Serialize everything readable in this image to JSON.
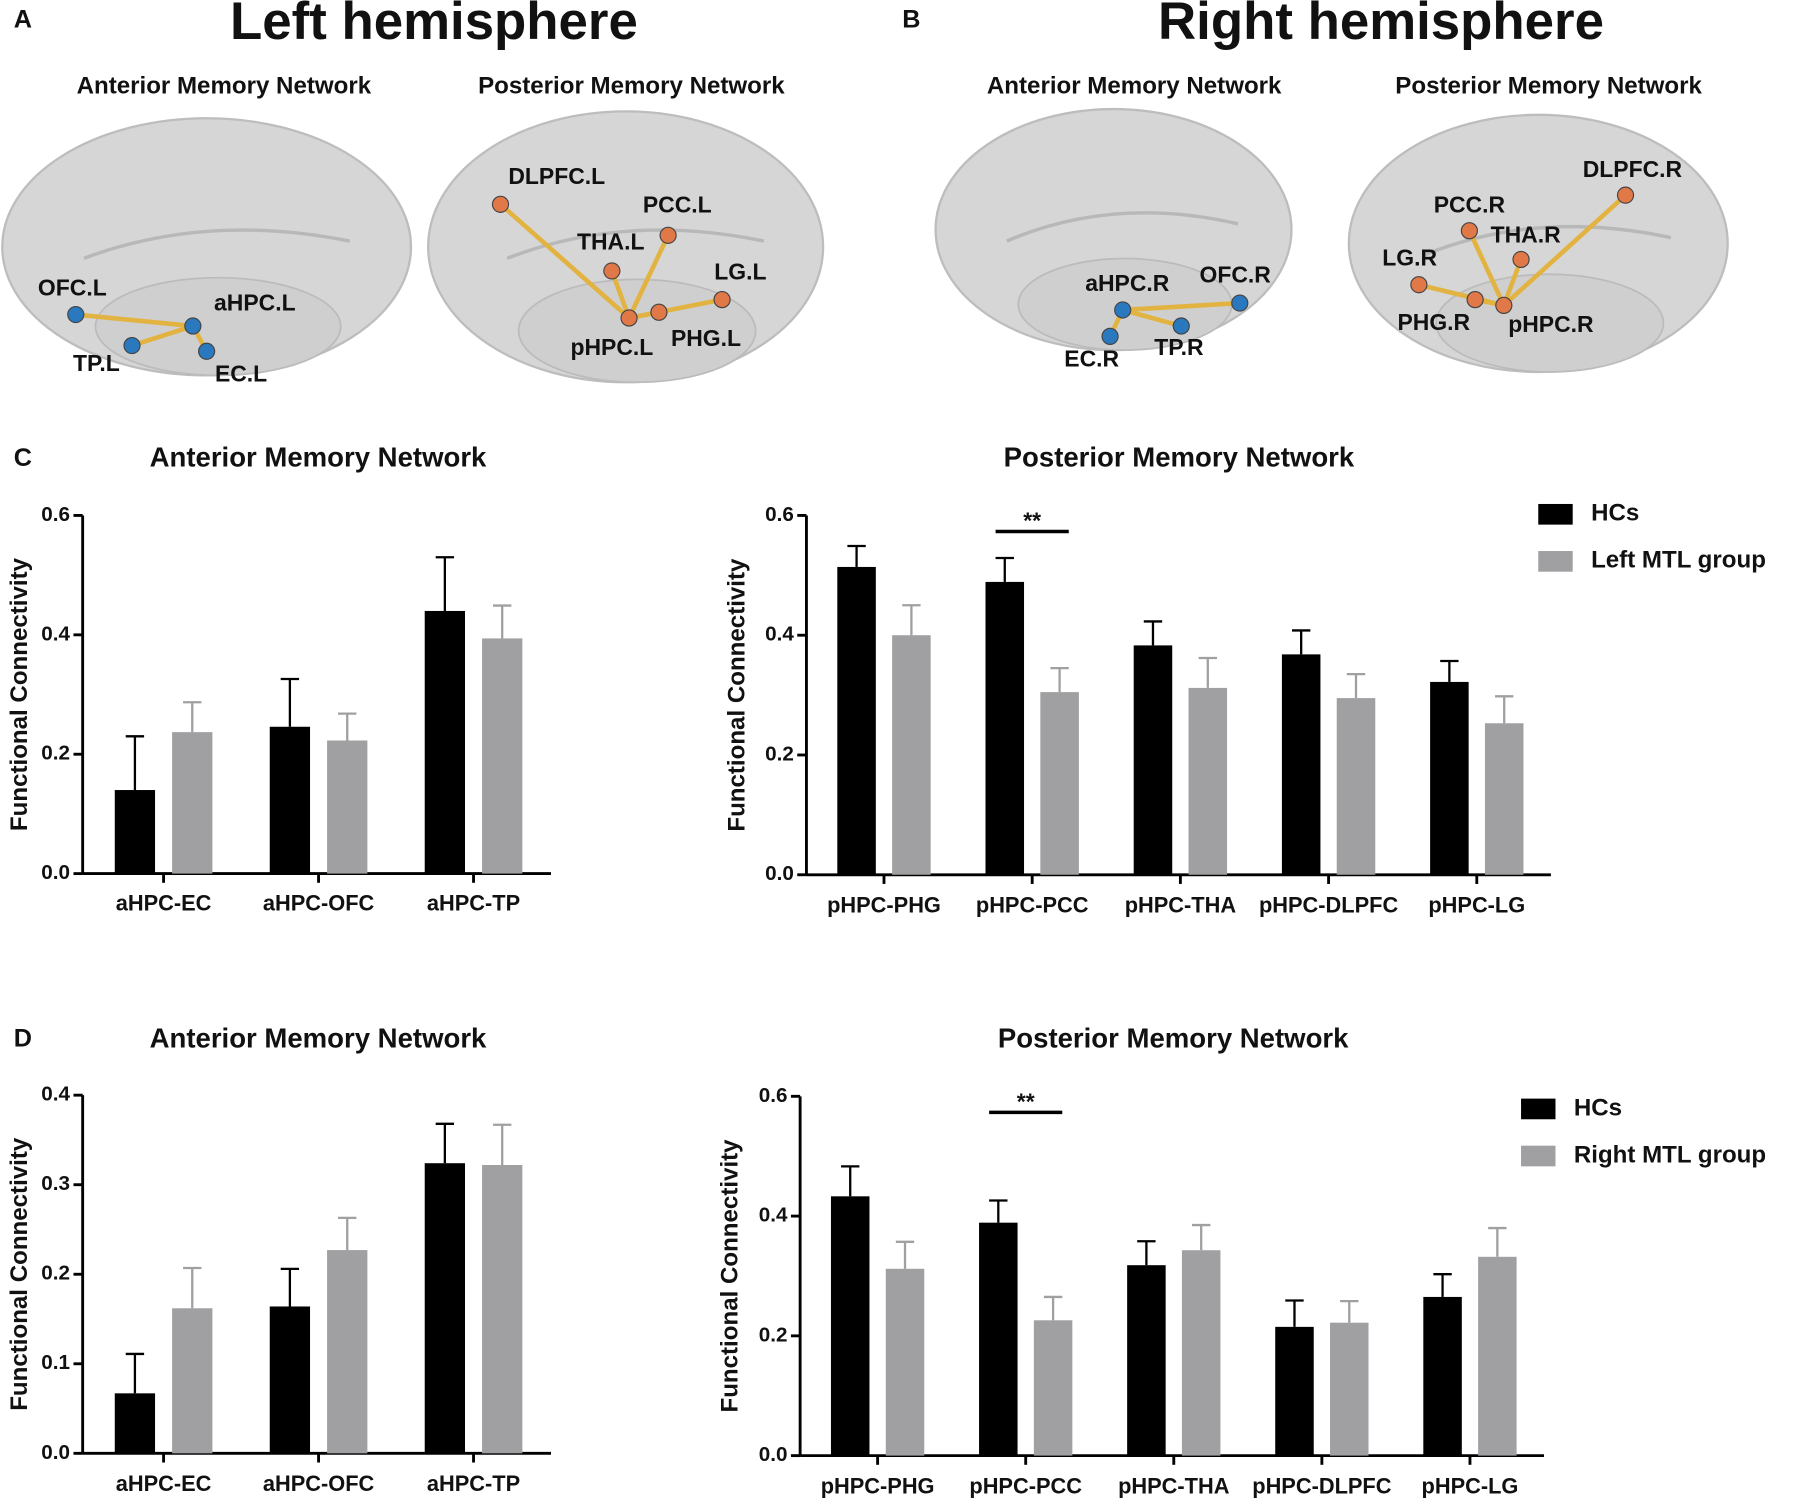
{
  "panel_labels": [
    "A",
    "B",
    "C",
    "D"
  ],
  "brain_maps": [
    {
      "title": "Left hemisphere",
      "networks": [
        {
          "title": "Anterior Memory Network",
          "node_color": "#2a78bd",
          "nodes": [
            "aHPC.L",
            "OFC.L",
            "TP.L",
            "EC.L"
          ]
        },
        {
          "title": "Posterior Memory Network",
          "node_color": "#e07848",
          "nodes": [
            "pHPC.L",
            "DLPFC.L",
            "PCC.L",
            "THA.L",
            "LG.L",
            "PHG.L"
          ]
        }
      ]
    },
    {
      "title": "Right hemisphere",
      "networks": [
        {
          "title": "Anterior Memory Network",
          "node_color": "#2a78bd",
          "nodes": [
            "aHPC.R",
            "OFC.R",
            "EC.R",
            "TP.R"
          ]
        },
        {
          "title": "Posterior Memory Network",
          "node_color": "#e07848",
          "nodes": [
            "pHPC.R",
            "DLPFC.R",
            "PCC.R",
            "THA.R",
            "LG.R",
            "PHG.R"
          ]
        }
      ]
    }
  ],
  "chart_data": [
    {
      "type": "bar",
      "title": "Anterior Memory Network",
      "y_label": "Functional Connectivity",
      "categories": [
        "aHPC-EC",
        "aHPC-OFC",
        "aHPC-TP"
      ],
      "series": [
        {
          "color": "#000000",
          "values": [
            0.14,
            0.246,
            0.44
          ],
          "errors": [
            0.09,
            0.08,
            0.09
          ]
        },
        {
          "color": "#a0a0a2",
          "values": [
            0.237,
            0.223,
            0.394
          ],
          "errors": [
            0.05,
            0.045,
            0.055
          ]
        }
      ],
      "ylim": [
        0,
        0.6
      ],
      "yticks": [
        {
          "value": 0,
          "label": "0.0"
        },
        {
          "value": 0.2,
          "label": "0.2"
        },
        {
          "value": 0.4,
          "label": "0.4"
        },
        {
          "value": 0.6,
          "label": "0.6"
        }
      ]
    },
    {
      "type": "bar",
      "title": "Posterior Memory Network",
      "y_label": "Functional Connectivity",
      "categories": [
        "pHPC-PHG",
        "pHPC-PCC",
        "pHPC-THA",
        "pHPC-DLPFC",
        "pHPC-LG"
      ],
      "series": [
        {
          "name": "HCs",
          "color": "#000000",
          "values": [
            0.514,
            0.489,
            0.383,
            0.368,
            0.322
          ],
          "errors": [
            0.035,
            0.04,
            0.04,
            0.04,
            0.035
          ]
        },
        {
          "name": "Left MTL group",
          "color": "#a0a0a2",
          "values": [
            0.4,
            0.305,
            0.312,
            0.295,
            0.253
          ],
          "errors": [
            0.05,
            0.04,
            0.05,
            0.04,
            0.045
          ]
        }
      ],
      "annotation": {
        "text": "**",
        "category": "pHPC-PCC"
      },
      "legend": "right",
      "ylim": [
        0,
        0.6
      ],
      "yticks": [
        {
          "value": 0,
          "label": "0.0"
        },
        {
          "value": 0.2,
          "label": "0.2"
        },
        {
          "value": 0.4,
          "label": "0.4"
        },
        {
          "value": 0.6,
          "label": "0.6"
        }
      ]
    },
    {
      "type": "bar",
      "title": "Anterior Memory Network",
      "y_label": "Functional Connectivity",
      "categories": [
        "aHPC-EC",
        "aHPC-OFC",
        "aHPC-TP"
      ],
      "series": [
        {
          "color": "#000000",
          "values": [
            0.067,
            0.164,
            0.324
          ],
          "errors": [
            0.044,
            0.042,
            0.044
          ]
        },
        {
          "color": "#a0a0a2",
          "values": [
            0.162,
            0.227,
            0.322
          ],
          "errors": [
            0.045,
            0.036,
            0.045
          ]
        }
      ],
      "ylim": [
        0,
        0.4
      ],
      "yticks": [
        {
          "value": 0,
          "label": "0.0"
        },
        {
          "value": 0.1,
          "label": "0.1"
        },
        {
          "value": 0.2,
          "label": "0.2"
        },
        {
          "value": 0.3,
          "label": "0.3"
        },
        {
          "value": 0.4,
          "label": "0.4"
        }
      ]
    },
    {
      "type": "bar",
      "title": "Posterior Memory Network",
      "y_label": "Functional Connectivity",
      "categories": [
        "pHPC-PHG",
        "pHPC-PCC",
        "pHPC-THA",
        "pHPC-DLPFC",
        "pHPC-LG"
      ],
      "series": [
        {
          "name": "HCs",
          "color": "#000000",
          "values": [
            0.433,
            0.389,
            0.318,
            0.215,
            0.265
          ],
          "errors": [
            0.05,
            0.037,
            0.04,
            0.044,
            0.038
          ]
        },
        {
          "name": "Right MTL group",
          "color": "#a0a0a2",
          "values": [
            0.312,
            0.226,
            0.343,
            0.222,
            0.332
          ],
          "errors": [
            0.045,
            0.039,
            0.042,
            0.036,
            0.048
          ]
        }
      ],
      "annotation": {
        "text": "**",
        "category": "pHPC-PCC"
      },
      "legend": "right",
      "ylim": [
        0,
        0.6
      ],
      "yticks": [
        {
          "value": 0,
          "label": "0.0"
        },
        {
          "value": 0.2,
          "label": "0.2"
        },
        {
          "value": 0.4,
          "label": "0.4"
        },
        {
          "value": 0.6,
          "label": "0.6"
        }
      ]
    }
  ]
}
